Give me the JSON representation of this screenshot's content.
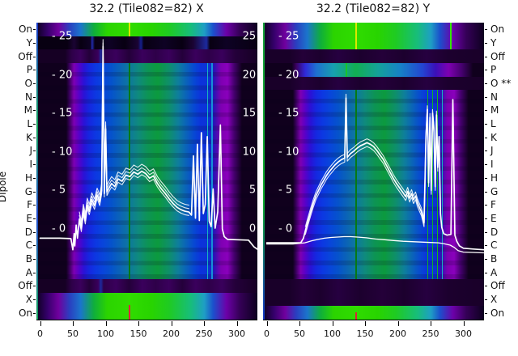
{
  "figure": {
    "ylabel": "Dipole",
    "background": "#ffffff"
  },
  "style": {
    "text_color": "#111111",
    "curve_color": "#ffffff",
    "tick_color": "#000000",
    "gradients": {
      "green": "#0d001f 0%, #35006b 5%, #70009e 10%, #2a3fc0 15%, #1b74cc 20%, #0fae3c 26%, #2bd400 32%, #30dc00 42%, #28d400 52%, #1fcb22 60%, #17bd7c 70%, #1e9ec4 76%, #1b50cc 80%, #6c00a8 86%, #350057 92%, #0d001f 100%",
      "ydark": "#080012 0%, #080012 14%, #1a0433 17%, #080012 20%, #0e0224 24.5%, #212bb0 25.2%, #080012 26.4%, #0e0224 33%, #080012 40%, #1a0433 46%, #141f8e 47.3%, #080012 48.6%, #0e0224 58%, #080012 66%, #1a0433 71%, #1c2a9e 77%, #080012 78.5%, #0e0224 86%, #080012 100%",
      "offrow": "#160024 0%, #160024 13%, #2e0049 16%, #3a005c 20%, #24003a 24%, #3a005c 28%, #1c2a9e 29.2%, #2e0049 30.4%, #3a005c 36%, #24003a 42%, #3a005c 48%, #2e0049 54%, #3a005c 60%, #24003a 66%, #3a005c 72%, #2e0049 78%, #3a005c 84%, #24003a 90%, #160024 100%",
      "darkrow": "#190029 0%, #190029 12%, #240039 18%, #1c002e 26%, #260040 34%, #1c002e 44%, #240039 54%, #1c002e 64%, #260040 74%, #1c002e 84%, #190029 100%",
      "body": "#10001d 0%, #10001d 13.5%, #3c0060 15%, #7e00b2 17%, #5b00c8 19%, #2a12d6 21.5%, #1527e0 24%, #0c38e2 27%, #0846da 30.5%, #0553cb 34%, #0b64b6 38%, #0e789f 42%, #0f8a7e 46%, #0d9454 50.5%, #0c9a3e 55%, #0e8f6a 60%, #0e7f9b 64%, #0a61bb 68%, #0747d4 71.5%, #0c32dc 74.5%, #0b35d4 78%, #2d12b4 80.5%, #7e00b2 83.5%, #8a00bc 86.5%, #45006e 89.5%, #10001d 93%, #10001d 100%",
      "pband": "#10001d 0%, #10001d 13%, #3c0060 15%, #3028d8 19%, #1e6fd2 24%, #17a0ae 32%, #12ae52 42%, #14a299 52%, #1682c6 62%, #2346d2 72%, #3a10b8 78%, #7e00b2 84%, #45006e 90%, #10001d 95%, #10001d 100%"
    }
  },
  "chart_data": {
    "type": "heatmap",
    "description": "Two spectral waterfall panels (X and Y polarisation) for tile 32.2 (Tile082=82). Rows are dipole states On/Y/Off, dipoles P..A, Off/X/On. White overlaid curves are per-dipole bandpass power profiles versus frequency channel.",
    "x_ticks": [
      0,
      50,
      100,
      150,
      200,
      250,
      300
    ],
    "x_range": [
      0,
      331
    ],
    "value_ticks": [
      25,
      20,
      15,
      10,
      5,
      0
    ],
    "row_labels_left": [
      "On",
      "Y",
      "Off",
      "P",
      "O",
      "N",
      "M",
      "L",
      "K",
      "J",
      "I",
      "H",
      "G",
      "F",
      "E",
      "D",
      "C",
      "B",
      "A",
      "Off",
      "X",
      "On"
    ],
    "row_labels_right": [
      "On",
      "Y",
      "Off",
      "P",
      "O **",
      "N",
      "M",
      "L",
      "K",
      "J",
      "I",
      "H",
      "G",
      "F",
      "E",
      "D",
      "C",
      "B",
      "A",
      "Off",
      "X",
      "On"
    ],
    "panels": [
      {
        "title": "32.2 (Tile082=82) X",
        "pol": "X",
        "flagged_rows": [],
        "right_inner_labels": true,
        "edge": "linear-gradient(#1537c8,#11a05a 35%,#1d49cc 65%,#12a05a)",
        "bands": [
          {
            "rows": [
              0,
              1
            ],
            "g": "green",
            "vlines": [
              {
                "x": 42.1,
                "w": 1.6,
                "c": "#dce800"
              }
            ]
          },
          {
            "rows": [
              1,
              2
            ],
            "g": "ydark"
          },
          {
            "rows": [
              2,
              3
            ],
            "g": "offrow"
          },
          {
            "rows": [
              3,
              19
            ],
            "g": "body",
            "shade": true,
            "vlines": [
              {
                "x": 42.1,
                "w": 1.6,
                "c": "#057a14"
              },
              {
                "x": 77.5,
                "w": 1.4,
                "c": "#17b2c0"
              },
              {
                "x": 79.5,
                "w": 1.2,
                "c": "#1790d8"
              }
            ]
          },
          {
            "rows": [
              19,
              20
            ],
            "g": "offrow"
          },
          {
            "rows": [
              20,
              22
            ],
            "g": "green",
            "vlines": [
              {
                "x": 42.1,
                "w": 1.6,
                "c": "#e0203a",
                "half": "bottom"
              }
            ]
          }
        ],
        "lines": [
          {
            "name": "x-pol-bandpass",
            "w": 1.7,
            "echo_dv": [
              0.45,
              -0.45,
              0.9
            ],
            "echo_range": [
              60,
              230
            ],
            "points": [
              [
                0,
                -1.2
              ],
              [
                30,
                -1.2
              ],
              [
                47,
                -1.25
              ],
              [
                50,
                -2.7
              ],
              [
                52,
                -0.6
              ],
              [
                53,
                -2.2
              ],
              [
                55,
                0.5
              ],
              [
                57,
                -1.2
              ],
              [
                60,
                1.3
              ],
              [
                63,
                0.1
              ],
              [
                66,
                2.3
              ],
              [
                69,
                1.1
              ],
              [
                72,
                3.1
              ],
              [
                75,
                2.3
              ],
              [
                79,
                3.8
              ],
              [
                83,
                3.0
              ],
              [
                87,
                4.4
              ],
              [
                91,
                3.5
              ],
              [
                94,
                5.0
              ],
              [
                96,
                23.7
              ],
              [
                98,
                4.6
              ],
              [
                100,
                13.0
              ],
              [
                102,
                4.8
              ],
              [
                105,
                5.3
              ],
              [
                109,
                5.9
              ],
              [
                114,
                5.5
              ],
              [
                119,
                6.5
              ],
              [
                125,
                6.2
              ],
              [
                131,
                7.0
              ],
              [
                137,
                6.8
              ],
              [
                143,
                7.4
              ],
              [
                149,
                7.1
              ],
              [
                155,
                7.5
              ],
              [
                161,
                7.2
              ],
              [
                167,
                6.6
              ],
              [
                173,
                6.9
              ],
              [
                179,
                5.9
              ],
              [
                185,
                5.2
              ],
              [
                191,
                4.6
              ],
              [
                197,
                3.9
              ],
              [
                203,
                3.3
              ],
              [
                209,
                2.8
              ],
              [
                215,
                2.5
              ],
              [
                221,
                2.3
              ],
              [
                227,
                2.2
              ],
              [
                231,
                1.8
              ],
              [
                234,
                9.5
              ],
              [
                237,
                1.4
              ],
              [
                240,
                11.0
              ],
              [
                243,
                1.1
              ],
              [
                246,
                12.5
              ],
              [
                249,
                2.0
              ],
              [
                252,
                3.2
              ],
              [
                255,
                12.0
              ],
              [
                258,
                1.0
              ],
              [
                261,
                0.3
              ],
              [
                264,
                5.2
              ],
              [
                267,
                0.1
              ],
              [
                271,
                2.2
              ],
              [
                275,
                13.5
              ],
              [
                278,
                0.0
              ],
              [
                281,
                -1.0
              ],
              [
                286,
                -1.35
              ],
              [
                300,
                -1.4
              ],
              [
                318,
                -1.45
              ],
              [
                326,
                -2.3
              ],
              [
                331,
                -2.6
              ]
            ]
          }
        ]
      },
      {
        "title": "32.2 (Tile082=82) Y",
        "pol": "Y",
        "flagged_rows": [
          "O"
        ],
        "right_inner_labels": false,
        "edge": "linear-gradient(#16a03a,#0fae2e 60%,#1537c8)",
        "bands": [
          {
            "rows": [
              0,
              2
            ],
            "g": "green",
            "vlines": [
              {
                "x": 42.1,
                "w": 1.6,
                "c": "#dce800"
              },
              {
                "x": 85,
                "w": 1.4,
                "c": "#35e400"
              }
            ]
          },
          {
            "rows": [
              2,
              3
            ],
            "g": "darkrow"
          },
          {
            "rows": [
              3,
              4
            ],
            "g": "pband",
            "vlines": [
              {
                "x": 37.7,
                "w": 1.2,
                "c": "#19c42a"
              }
            ]
          },
          {
            "rows": [
              4,
              5
            ],
            "g": "darkrow"
          },
          {
            "rows": [
              5,
              19
            ],
            "g": "body",
            "shade": true,
            "vlines": [
              {
                "x": 42.1,
                "w": 1.6,
                "c": "#057a14"
              },
              {
                "x": 74.5,
                "w": 1.3,
                "c": "#0fae2e"
              },
              {
                "x": 76.8,
                "w": 1.3,
                "c": "#0fae2e"
              },
              {
                "x": 79.0,
                "w": 1.3,
                "c": "#12b81f"
              },
              {
                "x": 81.0,
                "w": 1.0,
                "c": "#17b2c0"
              }
            ]
          },
          {
            "rows": [
              19,
              21
            ],
            "g": "darkrow"
          },
          {
            "rows": [
              21,
              22
            ],
            "g": "green",
            "vlines": [
              {
                "x": 42.1,
                "w": 1.6,
                "c": "#e0203a",
                "half": "bottom"
              }
            ]
          }
        ],
        "lines": [
          {
            "name": "y-pol-bandpass",
            "w": 1.7,
            "echo_dv": [
              0.5,
              -0.5
            ],
            "echo_range": [
              58,
              262
            ],
            "points": [
              [
                0,
                -1.8
              ],
              [
                30,
                -1.8
              ],
              [
                52,
                -1.8
              ],
              [
                56,
                -1.2
              ],
              [
                59,
                -0.2
              ],
              [
                63,
                1.0
              ],
              [
                67,
                2.2
              ],
              [
                71,
                3.3
              ],
              [
                75,
                4.3
              ],
              [
                79,
                5.0
              ],
              [
                83,
                5.7
              ],
              [
                87,
                6.3
              ],
              [
                91,
                6.9
              ],
              [
                95,
                7.4
              ],
              [
                99,
                7.8
              ],
              [
                104,
                8.3
              ],
              [
                109,
                8.7
              ],
              [
                114,
                9.0
              ],
              [
                119,
                9.2
              ],
              [
                121,
                17.0
              ],
              [
                123,
                9.3
              ],
              [
                128,
                9.8
              ],
              [
                133,
                10.1
              ],
              [
                138,
                10.5
              ],
              [
                143,
                10.8
              ],
              [
                148,
                11.0
              ],
              [
                153,
                11.2
              ],
              [
                158,
                11.0
              ],
              [
                163,
                10.7
              ],
              [
                168,
                10.2
              ],
              [
                173,
                9.6
              ],
              [
                178,
                9.0
              ],
              [
                183,
                8.2
              ],
              [
                188,
                7.4
              ],
              [
                193,
                6.6
              ],
              [
                198,
                5.9
              ],
              [
                203,
                5.3
              ],
              [
                208,
                4.7
              ],
              [
                212,
                4.2
              ],
              [
                215,
                4.9
              ],
              [
                218,
                4.0
              ],
              [
                221,
                4.6
              ],
              [
                224,
                3.8
              ],
              [
                227,
                4.3
              ],
              [
                230,
                3.4
              ],
              [
                236,
                2.2
              ],
              [
                240,
                0.8
              ],
              [
                243,
                12.0
              ],
              [
                245,
                15.5
              ],
              [
                247,
                6.0
              ],
              [
                249,
                14.5
              ],
              [
                251,
                5.0
              ],
              [
                253,
                15.0
              ],
              [
                255,
                13.0
              ],
              [
                257,
                5.5
              ],
              [
                259,
                14.8
              ],
              [
                261,
                8.0
              ],
              [
                263,
                12.0
              ],
              [
                265,
                2.0
              ],
              [
                267,
                0.2
              ],
              [
                270,
                -0.6
              ],
              [
                275,
                -0.8
              ],
              [
                281,
                -0.7
              ],
              [
                284,
                16.8
              ],
              [
                287,
                -0.8
              ],
              [
                290,
                -1.6
              ],
              [
                294,
                -2.2
              ],
              [
                300,
                -2.5
              ],
              [
                315,
                -2.6
              ],
              [
                331,
                -2.7
              ]
            ]
          },
          {
            "name": "y-pol-low-profile",
            "w": 1.3,
            "echo_dv": [],
            "echo_range": [
              0,
              0
            ],
            "points": [
              [
                0,
                -1.95
              ],
              [
                40,
                -1.95
              ],
              [
                58,
                -1.8
              ],
              [
                68,
                -1.55
              ],
              [
                78,
                -1.35
              ],
              [
                88,
                -1.2
              ],
              [
                98,
                -1.1
              ],
              [
                108,
                -1.05
              ],
              [
                118,
                -1.0
              ],
              [
                128,
                -1.0
              ],
              [
                138,
                -1.05
              ],
              [
                152,
                -1.15
              ],
              [
                166,
                -1.3
              ],
              [
                180,
                -1.4
              ],
              [
                194,
                -1.5
              ],
              [
                208,
                -1.6
              ],
              [
                222,
                -1.65
              ],
              [
                236,
                -1.7
              ],
              [
                250,
                -1.75
              ],
              [
                262,
                -1.8
              ],
              [
                270,
                -1.9
              ],
              [
                280,
                -2.1
              ],
              [
                286,
                -2.4
              ],
              [
                292,
                -2.8
              ],
              [
                300,
                -3.0
              ],
              [
                315,
                -3.05
              ],
              [
                331,
                -3.1
              ]
            ]
          }
        ]
      }
    ]
  }
}
